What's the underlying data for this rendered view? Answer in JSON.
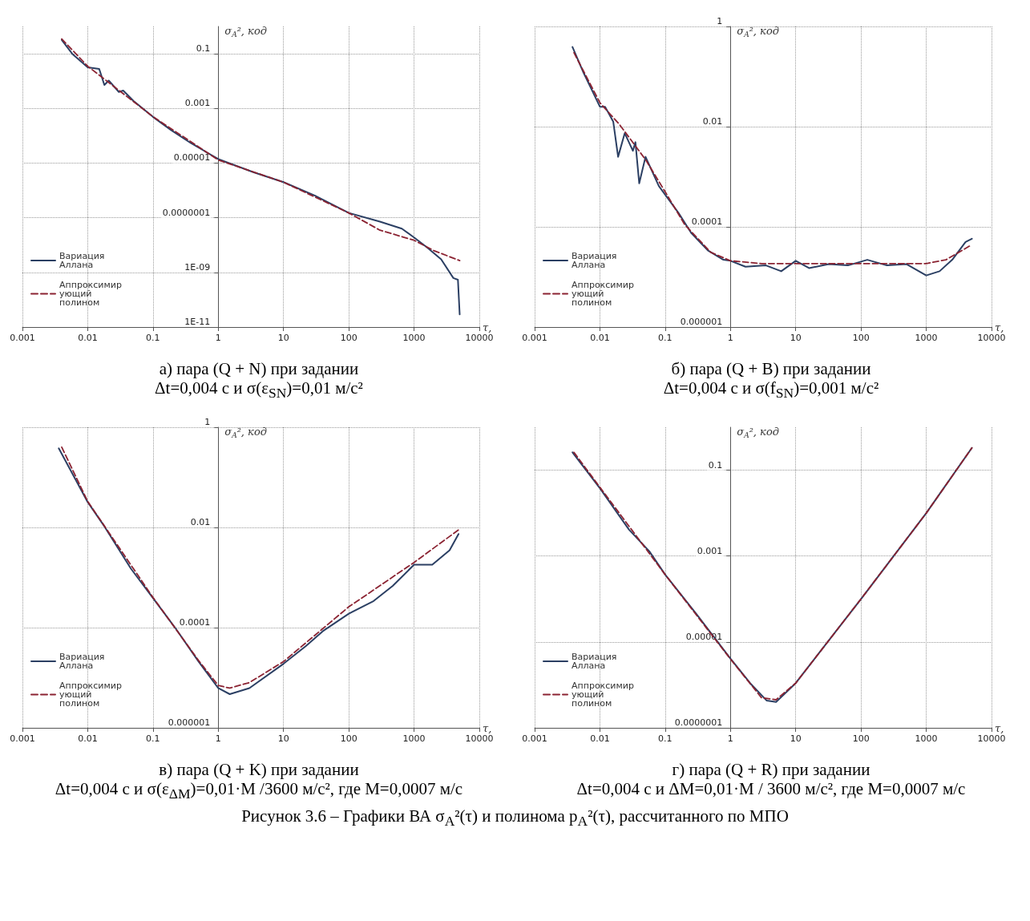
{
  "chart_data": [
    {
      "type": "line",
      "title": "а) пара (Q + N) при задании",
      "subtitle": "Δt=0,004 с и σ(ε$_{SN}$)=0,01 м/с²",
      "xlabel": "τ,",
      "ylabel": "σ$_{A}$², код",
      "log": "xy",
      "grid": true,
      "legend": "bottom left",
      "xlim": [
        0.001,
        10000
      ],
      "xticks": [
        0.001,
        0.01,
        0.1,
        1,
        10,
        100,
        1000,
        10000
      ],
      "ylim": [
        1e-11,
        1
      ],
      "yticks": [
        {
          "value": 1e-11,
          "label": "1E-11"
        },
        {
          "value": 1e-09,
          "label": "1E-09"
        },
        {
          "value": 1e-07,
          "label": "0.0000001"
        },
        {
          "value": 1e-05,
          "label": "0.00001"
        },
        0.001,
        0.1
      ],
      "series": [
        {
          "name": "Вариация Аллана",
          "color": "#2b3f63",
          "line_style": "solid",
          "x": [
            0.004,
            0.0059,
            0.01,
            0.015,
            0.018,
            0.021,
            0.03,
            0.035,
            0.05,
            0.1,
            0.19,
            0.38,
            1,
            3.5,
            10,
            30,
            100,
            300,
            650,
            1000,
            1600,
            2600,
            4000,
            4700,
            5000
          ],
          "values": [
            0.32,
            0.095,
            0.032,
            0.028,
            0.0072,
            0.0105,
            0.004,
            0.0045,
            0.0019,
            0.00049,
            0.00016,
            5.4e-05,
            1.4e-05,
            4.6e-06,
            2e-06,
            6.5e-07,
            1.5e-07,
            7.2e-08,
            4e-08,
            1.9e-08,
            8e-09,
            3e-09,
            6.2e-10,
            5.4e-10,
            2.9e-11
          ]
        },
        {
          "name": "Аппроксимирующий полином",
          "color": "#8b2332",
          "line_style": "dashed",
          "x": [
            0.004,
            0.01,
            0.1,
            1,
            10,
            100,
            300,
            1000,
            2000,
            5000
          ],
          "values": [
            0.35,
            0.035,
            0.0005,
            1.3e-05,
            2e-06,
            1.5e-07,
            3.5e-08,
            1.5e-08,
            6.3e-09,
            2.7e-09
          ]
        }
      ]
    },
    {
      "type": "line",
      "title": "б) пара (Q + B) при задании",
      "subtitle": "Δt=0,004 с и σ(f$_{SN}$)=0,001 м/с²",
      "xlabel": "τ,",
      "ylabel": "σ$_{A}$², код",
      "log": "xy",
      "grid": true,
      "legend": "bottom left",
      "xlim": [
        0.001,
        10000
      ],
      "xticks": [
        0.001,
        0.01,
        0.1,
        1,
        10,
        100,
        1000,
        10000
      ],
      "ylim": [
        1e-06,
        1
      ],
      "yticks": [
        {
          "value": 1e-06,
          "label": "0.000001"
        },
        0.0001,
        0.01,
        1
      ],
      "series": [
        {
          "name": "Вариация Аллана",
          "color": "#2b3f63",
          "line_style": "solid",
          "x": [
            0.0038,
            0.0056,
            0.01,
            0.012,
            0.016,
            0.019,
            0.024,
            0.032,
            0.035,
            0.04,
            0.05,
            0.08,
            0.16,
            0.25,
            0.45,
            0.78,
            1,
            1.7,
            3.5,
            6,
            10,
            16,
            32,
            63,
            125,
            250,
            500,
            1000,
            1600,
            2500,
            4000,
            5000
          ],
          "values": [
            0.39,
            0.12,
            0.025,
            0.025,
            0.0126,
            0.0025,
            0.0074,
            0.0033,
            0.0049,
            0.00074,
            0.0025,
            0.00065,
            0.00019,
            7.6e-05,
            3.4e-05,
            2.2e-05,
            2.1e-05,
            1.6e-05,
            1.7e-05,
            1.3e-05,
            2.1e-05,
            1.5e-05,
            1.8e-05,
            1.7e-05,
            2.2e-05,
            1.7e-05,
            1.8e-05,
            1.07e-05,
            1.3e-05,
            2.2e-05,
            5e-05,
            5.8e-05
          ]
        },
        {
          "name": "Аппроксимирующий полином",
          "color": "#8b2332",
          "line_style": "dashed",
          "x": [
            0.004,
            0.01,
            0.02,
            0.05,
            0.1,
            0.2,
            0.5,
            1,
            3,
            10,
            100,
            1000,
            2000,
            5000
          ],
          "values": [
            0.3,
            0.03,
            0.011,
            0.0022,
            0.0005,
            0.00011,
            3.1e-05,
            2.1e-05,
            1.85e-05,
            1.85e-05,
            1.85e-05,
            1.85e-05,
            2.2e-05,
            4.4e-05
          ]
        }
      ]
    },
    {
      "type": "line",
      "title": "в) пара (Q + K) при задании",
      "subtitle": "Δt=0,004 с и σ(ε$_{ΔM}$)=0,01·M /3600 м/с², где M=0,0007 м/с",
      "xlabel": "τ,",
      "ylabel": "σ$_{A}$², код",
      "log": "xy",
      "grid": true,
      "legend": "bottom left",
      "xlim": [
        0.001,
        10000
      ],
      "xticks": [
        0.001,
        0.01,
        0.1,
        1,
        10,
        100,
        1000,
        10000
      ],
      "ylim": [
        1e-06,
        1
      ],
      "yticks": [
        {
          "value": 1e-06,
          "label": "0.000001"
        },
        0.0001,
        0.01,
        1
      ],
      "series": [
        {
          "name": "Вариация Аллана",
          "color": "#2b3f63",
          "line_style": "solid",
          "x": [
            0.0036,
            0.01,
            0.018,
            0.046,
            0.1,
            0.22,
            0.5,
            1,
            1.5,
            3,
            10,
            22,
            40,
            100,
            240,
            470,
            1000,
            1900,
            3500,
            4800
          ],
          "values": [
            0.38,
            0.032,
            0.0105,
            0.0015,
            0.00039,
            9.8e-05,
            2.1e-05,
            6.2e-06,
            4.7e-06,
            6.2e-06,
            1.9e-05,
            4.3e-05,
            8.5e-05,
            0.00019,
            0.00034,
            0.00068,
            0.0018,
            0.0018,
            0.0035,
            0.0074
          ]
        },
        {
          "name": "Аппроксимирующий полином",
          "color": "#8b2332",
          "line_style": "dashed",
          "x": [
            0.004,
            0.01,
            0.1,
            0.5,
            1,
            1.5,
            3,
            10,
            100,
            1000,
            5000
          ],
          "values": [
            0.4,
            0.033,
            0.0004,
            2.2e-05,
            7e-06,
            6.2e-06,
            8e-06,
            2.1e-05,
            0.00026,
            0.002,
            0.0093
          ]
        }
      ]
    },
    {
      "type": "line",
      "title": "г) пара (Q + R) при задании",
      "subtitle": "Δt=0,004 с и ΔM=0,01·M / 3600 м/с², где M=0,0007 м/с",
      "xlabel": "τ,",
      "ylabel": "σ$_{A}$², код",
      "log": "xy",
      "grid": true,
      "legend": "bottom left",
      "xlim": [
        0.001,
        10000
      ],
      "xticks": [
        0.001,
        0.01,
        0.1,
        1,
        10,
        100,
        1000,
        10000
      ],
      "ylim": [
        1e-07,
        1
      ],
      "yticks": [
        {
          "value": 1e-07,
          "label": "0.0000001"
        },
        {
          "value": 1e-05,
          "label": "0.00001"
        },
        0.001,
        0.1
      ],
      "annotations": [
        "Рисунок 3.6 – Графики ВА σ$_{A}$²(τ) и полинома p$_{A}$²(τ), рассчитанного по МПО"
      ],
      "series": [
        {
          "name": "Вариация Аллана",
          "color": "#2b3f63",
          "line_style": "solid",
          "x": [
            0.0038,
            0.01,
            0.028,
            0.057,
            0.1,
            0.3,
            1,
            2,
            3.6,
            5,
            10,
            100,
            1000,
            5000
          ],
          "values": [
            0.26,
            0.038,
            0.0041,
            0.0013,
            0.00037,
            4.5e-05,
            4.1e-06,
            1.1e-06,
            4.3e-07,
            4e-07,
            1.1e-06,
            0.0001,
            0.01,
            0.33
          ]
        },
        {
          "name": "Аппроксимирующий полином",
          "color": "#8b2332",
          "line_style": "dashed",
          "x": [
            0.004,
            0.01,
            0.1,
            1,
            3,
            5,
            10,
            100,
            1000,
            5000
          ],
          "values": [
            0.26,
            0.04,
            0.00037,
            4e-06,
            5e-07,
            4.5e-07,
            1.1e-06,
            0.0001,
            0.01,
            0.33
          ]
        }
      ]
    }
  ]
}
